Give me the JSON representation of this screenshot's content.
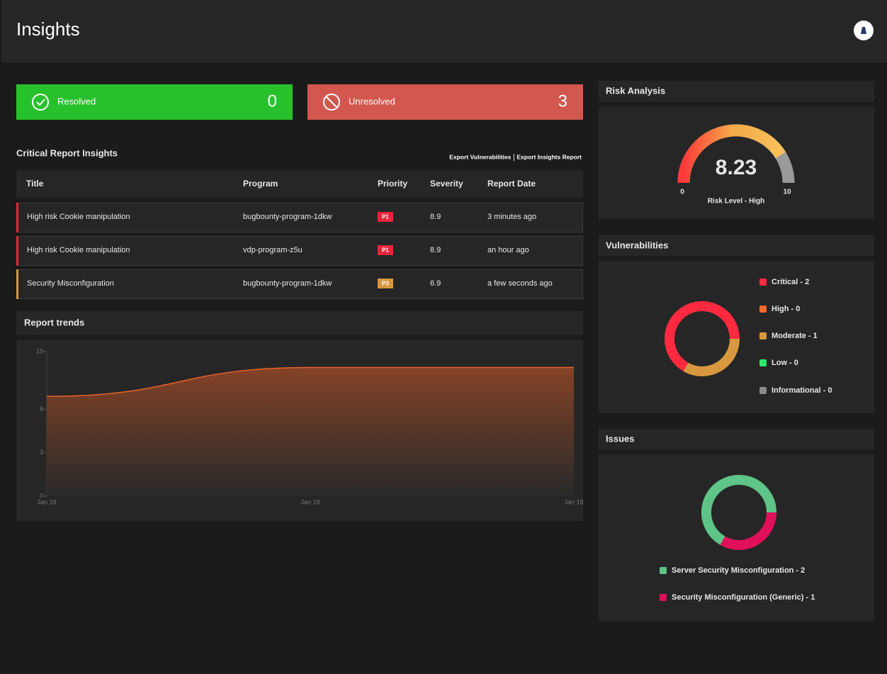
{
  "header": {
    "title": "Insights"
  },
  "stats": [
    {
      "label": "Resolved",
      "value": 0,
      "color": "#27c22b"
    },
    {
      "label": "Unresolved",
      "value": 3,
      "color": "#d2574f"
    }
  ],
  "insights": {
    "title": "Critical Report Insights",
    "links": [
      "Export Vulnerabilities",
      "Export Insights Report"
    ],
    "columns": [
      "Title",
      "Program",
      "Priority",
      "Severity",
      "Report Date"
    ],
    "rows": [
      [
        "High risk Cookie manipulation",
        "bugbounty-program-1dkw",
        "P1",
        8.9,
        "3 minutes ago"
      ],
      [
        "High risk Cookie manipulation",
        "vdp-program-z5u",
        "P1",
        8.9,
        "an hour ago"
      ],
      [
        "Security Misconfiguration",
        "bugbounty-program-1dkw",
        "P3",
        6.9,
        "a few seconds ago"
      ]
    ],
    "priority_colors": {
      "P1": "#e8243a",
      "P3": "#d8983f"
    }
  },
  "trends": {
    "title": "Report trends",
    "type": "area",
    "categories": [
      "Jan 18",
      "Jan 18",
      "Jan 18"
    ],
    "values": [
      6.9,
      8.9,
      8.9
    ],
    "color": "#e8622e",
    "ylim": [
      0,
      10
    ],
    "yticks": [
      0,
      3,
      6,
      10
    ]
  },
  "risk": {
    "title": "Risk Analysis",
    "type": "gauge",
    "value": 8.23,
    "min": 0,
    "max": 10,
    "label": "Risk Level - High"
  },
  "vulnerabilities": {
    "title": "Vulnerabilities",
    "type": "donut",
    "labels": [
      "Critical - 2",
      "High - 0",
      "Moderate - 1",
      "Low - 0",
      "Informational - 0"
    ],
    "values": [
      2,
      0,
      1,
      0,
      0
    ],
    "colors": [
      "#ff2a3f",
      "#f0692d",
      "#d8983f",
      "#2ee86a",
      "#8a8a8a"
    ]
  },
  "issues": {
    "title": "Issues",
    "type": "donut",
    "labels": [
      "Server Security Misconfiguration - 2",
      "Security Misconfiguration (Generic) - 1"
    ],
    "values": [
      2,
      1
    ],
    "colors": [
      "#5ec487",
      "#e0105a"
    ]
  }
}
